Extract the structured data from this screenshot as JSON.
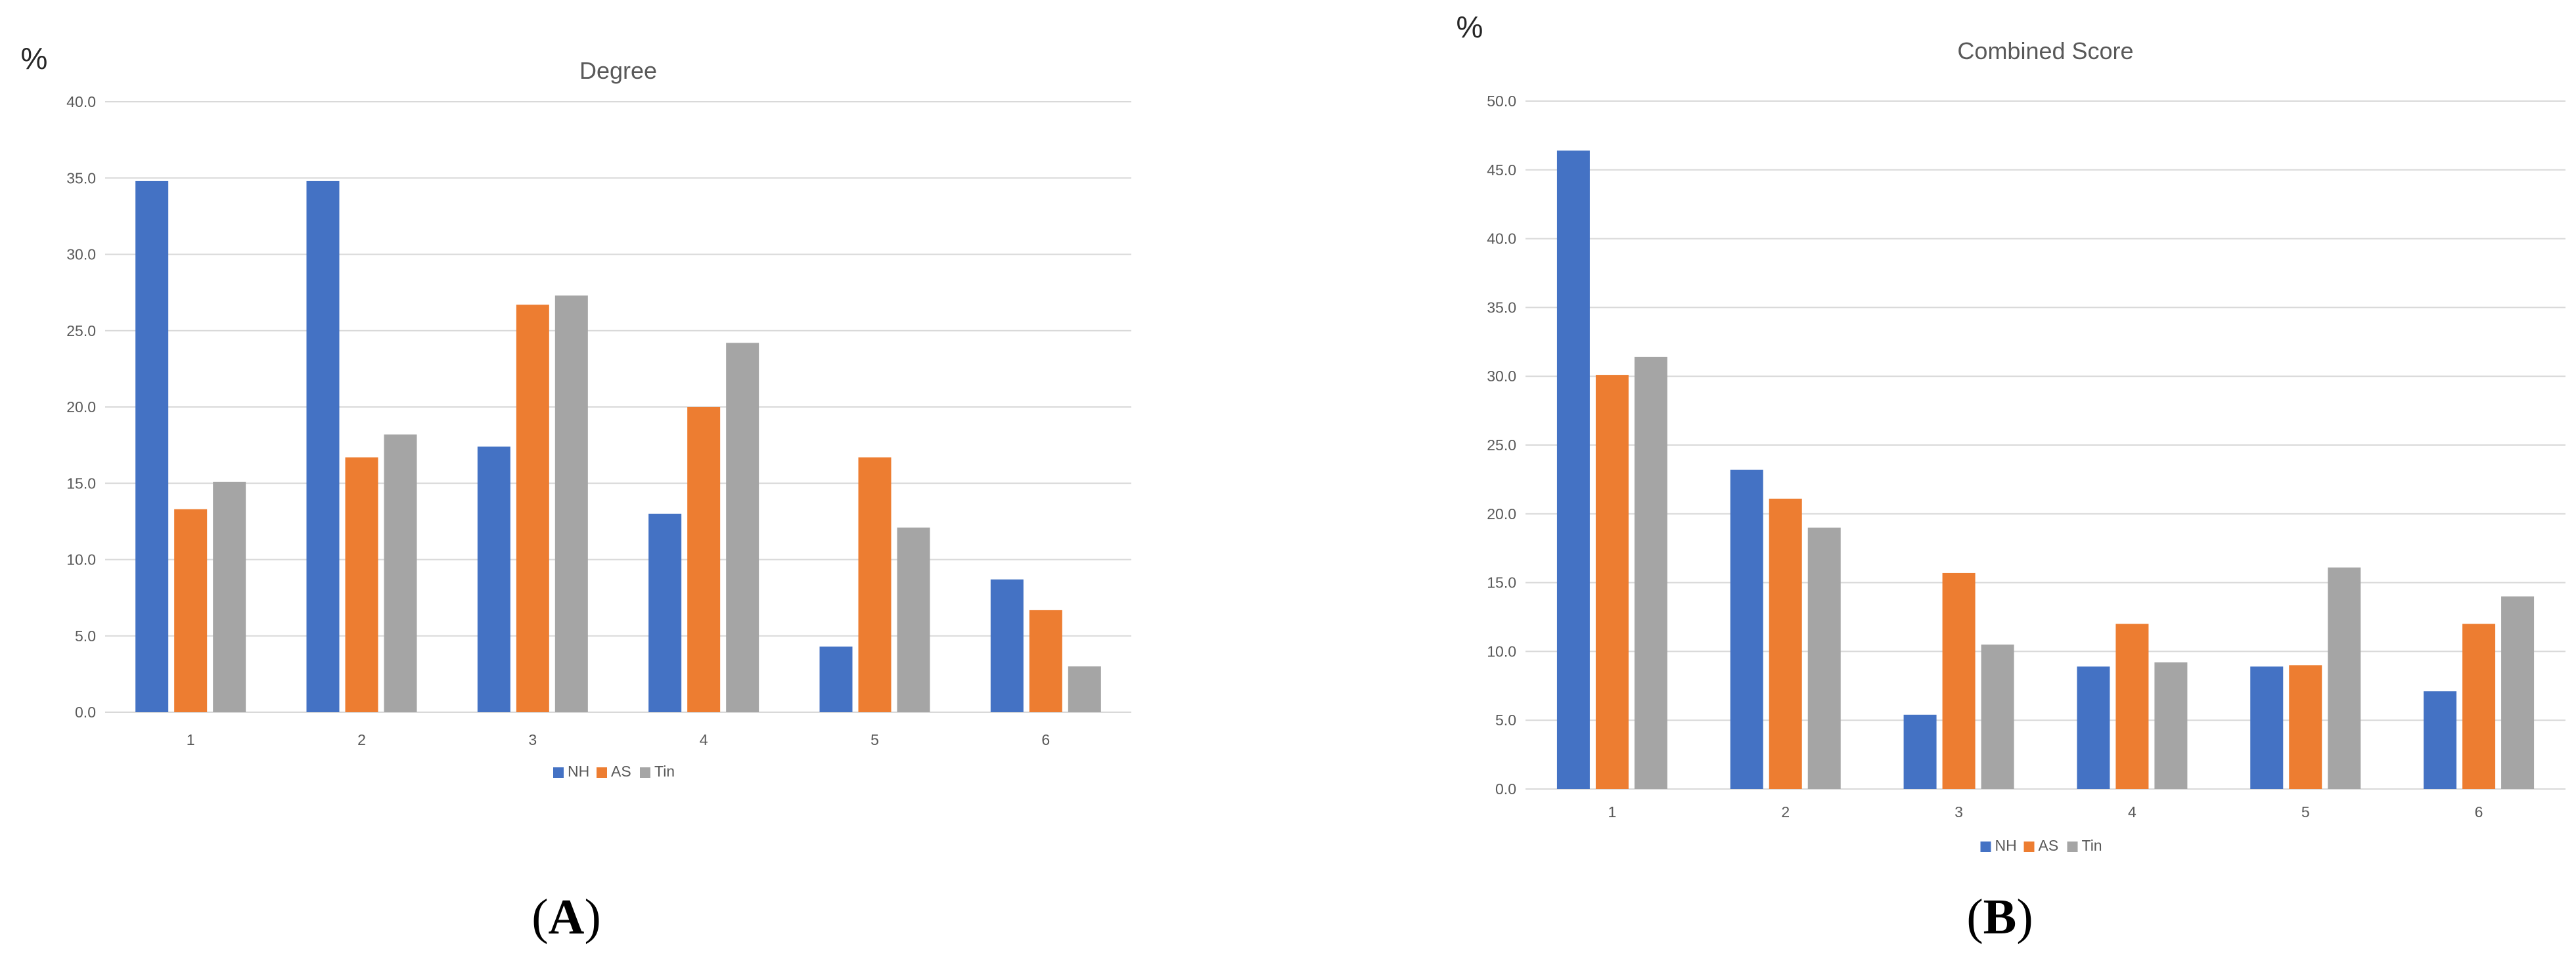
{
  "panels": [
    {
      "label_open": "(",
      "label_letter": "A",
      "label_close": ")"
    },
    {
      "label_open": "(",
      "label_letter": "B",
      "label_close": ")"
    }
  ],
  "colors": {
    "NH": "#4472c4",
    "AS": "#ed7d31",
    "Tin": "#a5a5a5",
    "grid": "#d9d9d9",
    "text": "#595959"
  },
  "chart_data": [
    {
      "type": "bar",
      "title": "Degree",
      "unit_label": "%",
      "categories": [
        "1",
        "2",
        "3",
        "4",
        "5",
        "6"
      ],
      "series": [
        {
          "name": "NH",
          "values": [
            34.8,
            34.8,
            17.4,
            13.0,
            4.3,
            8.7
          ]
        },
        {
          "name": "AS",
          "values": [
            13.3,
            16.7,
            26.7,
            20.0,
            16.7,
            6.7
          ]
        },
        {
          "name": "Tin",
          "values": [
            15.1,
            18.2,
            27.3,
            24.2,
            12.1,
            3.0
          ]
        }
      ],
      "ylim": [
        0,
        40
      ],
      "ytick_labels": [
        "0.0",
        "5.0",
        "10.0",
        "15.0",
        "20.0",
        "25.0",
        "30.0",
        "35.0",
        "40.0"
      ],
      "grid": true,
      "legend": "bottom"
    },
    {
      "type": "bar",
      "title": "Combined Score",
      "unit_label": "%",
      "categories": [
        "1",
        "2",
        "3",
        "4",
        "5",
        "6"
      ],
      "series": [
        {
          "name": "NH",
          "values": [
            46.4,
            23.2,
            5.4,
            8.9,
            8.9,
            7.1
          ]
        },
        {
          "name": "AS",
          "values": [
            30.1,
            21.1,
            15.7,
            12.0,
            9.0,
            12.0
          ]
        },
        {
          "name": "Tin",
          "values": [
            31.4,
            19.0,
            10.5,
            9.2,
            16.1,
            14.0
          ]
        }
      ],
      "ylim": [
        0,
        50
      ],
      "ytick_labels": [
        "0.0",
        "5.0",
        "10.0",
        "15.0",
        "20.0",
        "25.0",
        "30.0",
        "35.0",
        "40.0",
        "45.0",
        "50.0"
      ],
      "grid": true,
      "legend": "bottom"
    }
  ]
}
